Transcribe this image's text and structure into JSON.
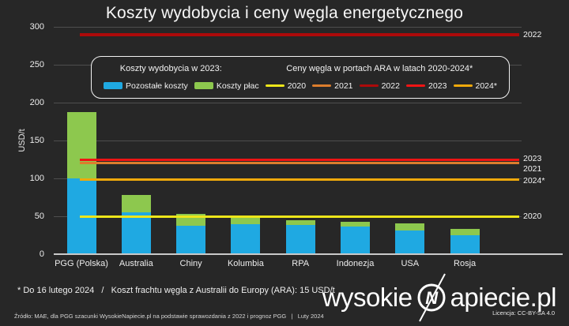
{
  "title": "Koszty wydobycia i ceny węgla energetycznego",
  "colors": {
    "background": "#272727",
    "text": "#F2F2F2",
    "grid": "#4E4E4E",
    "axis_line": "#C9C9C9",
    "blue": "#1FA9E2",
    "green": "#8DC84E",
    "y2020": "#EDE61A",
    "y2021": "#DC7D2D",
    "y2022": "#AD0A0A",
    "y2023": "#F01414",
    "y2024": "#EFA90B"
  },
  "chart_data": {
    "type": "bar",
    "stacked": true,
    "title": "Koszty wydobycia i ceny węgla energetycznego",
    "xlabel": "",
    "ylabel": "USD/t",
    "ylim": [
      0,
      300
    ],
    "yticks": [
      0,
      50,
      100,
      150,
      200,
      250,
      300
    ],
    "grid": true,
    "legend_position": "top",
    "categories": [
      "PGG (Polska)",
      "Australia",
      "Chiny",
      "Kolumbia",
      "RPA",
      "Indonezja",
      "USA",
      "Rosja"
    ],
    "series": [
      {
        "name": "Pozostałe koszty",
        "color_key": "blue",
        "values": [
          100,
          55,
          37,
          40,
          39,
          36,
          31,
          25
        ]
      },
      {
        "name": "Koszty płac",
        "color_key": "green",
        "values": [
          87,
          23,
          16,
          8,
          6,
          7,
          10,
          8
        ]
      }
    ],
    "price_lines": [
      {
        "label": "2020",
        "value": 50,
        "color_key": "y2020",
        "thickness": 3,
        "label_dy": 0
      },
      {
        "label": "2021",
        "value": 120,
        "color_key": "y2021",
        "thickness": 3,
        "label_dy": 7
      },
      {
        "label": "2022",
        "value": 290,
        "color_key": "y2022",
        "thickness": 4,
        "label_dy": 0
      },
      {
        "label": "2023",
        "value": 125,
        "color_key": "y2023",
        "thickness": 3,
        "label_dy": -1
      },
      {
        "label": "2024*",
        "value": 98,
        "color_key": "y2024",
        "thickness": 3,
        "label_dy": 1
      }
    ]
  },
  "legend": {
    "costs_header": "Koszty wydobycia w 2023:",
    "prices_header": "Ceny węgla w portach ARA w latach 2020-2024*"
  },
  "footnote": "* Do 16 lutego 2024   /   Koszt frachtu węgla z Australii do Europy (ARA): 15 USD/t",
  "source": "Źródło: MAE, dla PGG szacunki WysokieNapiecie.pl na podstawie sprawozdania z 2022 i prognoz PGG   |   Luty 2024",
  "logo": {
    "part1": "wysokie",
    "monogram": "N",
    "part2": "apiecie.pl",
    "license": "Licencja: CC-BY-SA 4.0"
  }
}
